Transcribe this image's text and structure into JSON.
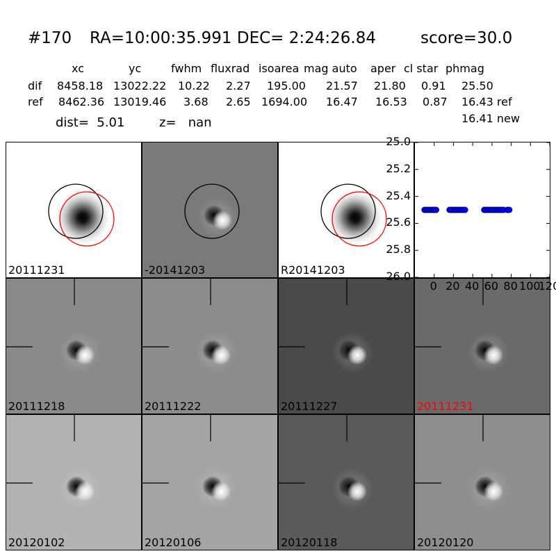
{
  "title": {
    "id": "#170",
    "radec": "RA=10:00:35.991 DEC= 2:24:26.84",
    "score": "score=30.0"
  },
  "table": {
    "headers": [
      "xc",
      "yc",
      "fwhm",
      "fluxrad",
      "isoarea",
      "mag auto",
      "aper",
      "cl star",
      "phmag"
    ],
    "rows": [
      {
        "label": "dif",
        "values": [
          "8458.18",
          "13022.22",
          "10.22",
          "2.27",
          "195.00",
          "21.57",
          "21.80",
          "0.91",
          "25.50"
        ]
      },
      {
        "label": "ref",
        "values": [
          "8462.36",
          "13019.46",
          "3.68",
          "2.65",
          "1694.00",
          "16.47",
          "16.53",
          "0.87",
          "16.43 ref"
        ]
      }
    ],
    "extra": "16.41 new"
  },
  "dist_line": {
    "dist": "dist=  5.01",
    "z": "z=   nan"
  },
  "stamps": [
    {
      "label": "20111231",
      "label_color": "#000000",
      "kind": "ref",
      "bg": "#ffffff"
    },
    {
      "label": "-20141203",
      "label_color": "#000000",
      "kind": "diff",
      "bg": "#7a7a7a"
    },
    {
      "label": "R20141203",
      "label_color": "#000000",
      "kind": "ref",
      "bg": "#ffffff"
    },
    {
      "label": "20111218",
      "label_color": "#000000",
      "kind": "epoch",
      "bg": "#8a8a8a"
    },
    {
      "label": "20111222",
      "label_color": "#000000",
      "kind": "epoch",
      "bg": "#8c8c8c"
    },
    {
      "label": "20111227",
      "label_color": "#000000",
      "kind": "epoch",
      "bg": "#4a4a4a"
    },
    {
      "label": "20111231",
      "label_color": "#ff0000",
      "kind": "epoch",
      "bg": "#6a6a6a"
    },
    {
      "label": "20120102",
      "label_color": "#000000",
      "kind": "epoch",
      "bg": "#b2b2b2"
    },
    {
      "label": "20120106",
      "label_color": "#000000",
      "kind": "epoch",
      "bg": "#a4a4a4"
    },
    {
      "label": "20120118",
      "label_color": "#000000",
      "kind": "epoch",
      "bg": "#5a5a5a"
    },
    {
      "label": "20120120",
      "label_color": "#000000",
      "kind": "epoch",
      "bg": "#8e8e8e"
    }
  ],
  "chart_data": {
    "type": "scatter",
    "title": "",
    "xlabel": "",
    "ylabel": "",
    "xlim": [
      -20,
      120
    ],
    "ylim": [
      26.0,
      25.0
    ],
    "y_inverted": true,
    "x_ticks": [
      "0",
      "20",
      "40",
      "60",
      "80",
      "100",
      "120"
    ],
    "y_ticks": [
      "25.0",
      "25.2",
      "25.4",
      "25.6",
      "25.8",
      "26.0"
    ],
    "marker_color": "#0000ff",
    "series": [
      {
        "x": [
          -10,
          -8,
          -6,
          -4,
          -2,
          0,
          2,
          16,
          18,
          20,
          22,
          24,
          26,
          28,
          30,
          32,
          52,
          54,
          56,
          58,
          60,
          62,
          64,
          66,
          68,
          70,
          72,
          76,
          78
        ],
        "y": [
          25.5,
          25.5,
          25.5,
          25.5,
          25.5,
          25.5,
          25.5,
          25.5,
          25.5,
          25.5,
          25.5,
          25.5,
          25.5,
          25.5,
          25.5,
          25.5,
          25.5,
          25.5,
          25.5,
          25.5,
          25.5,
          25.5,
          25.5,
          25.5,
          25.5,
          25.5,
          25.5,
          25.5,
          25.5
        ]
      }
    ]
  }
}
